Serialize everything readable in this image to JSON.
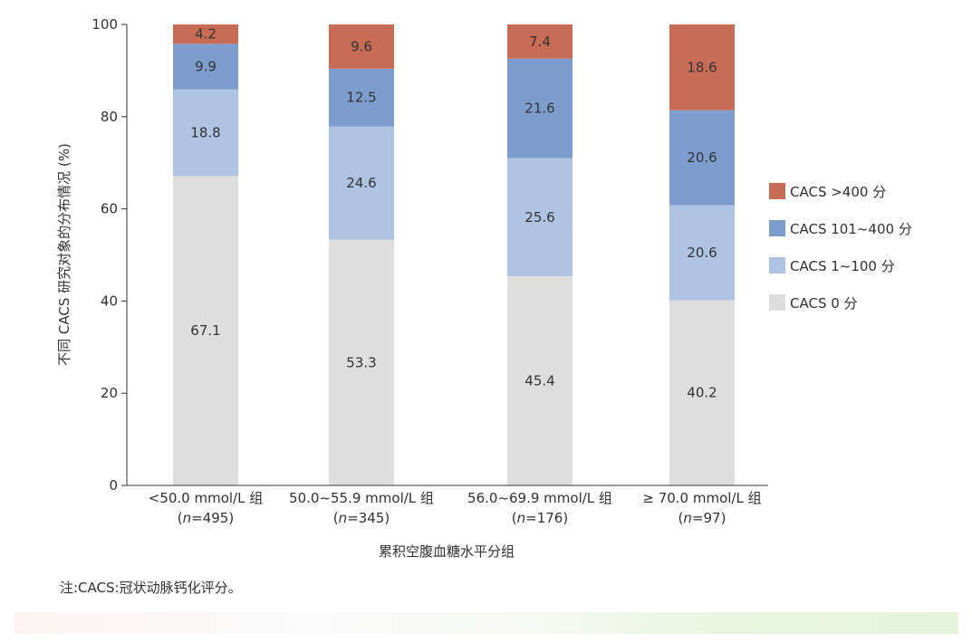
{
  "chart_data": {
    "type": "bar",
    "stacked": true,
    "categories": [
      {
        "label": "<50.0 mmol/L 组",
        "n_label": "n",
        "n_value": "=495"
      },
      {
        "label": "50.0~55.9 mmol/L 组",
        "n_label": "n",
        "n_value": "=345"
      },
      {
        "label": "56.0~69.9 mmol/L 组",
        "n_label": "n",
        "n_value": "=176"
      },
      {
        "label": "≥ 70.0 mmol/L 组",
        "n_label": "n",
        "n_value": "=97"
      }
    ],
    "series": [
      {
        "name": "CACS 0 分",
        "color": "#dedede",
        "values": [
          67.1,
          53.3,
          45.4,
          40.2
        ]
      },
      {
        "name": "CACS 1~100 分",
        "color": "#afc3e3",
        "values": [
          18.8,
          24.6,
          25.6,
          20.6
        ]
      },
      {
        "name": "CACS 101~400 分",
        "color": "#7e9dcf",
        "values": [
          9.9,
          12.5,
          21.6,
          20.6
        ]
      },
      {
        "name": "CACS >400 分",
        "color": "#c96c55",
        "values": [
          4.2,
          9.6,
          7.4,
          18.6
        ]
      }
    ],
    "ylim": [
      0,
      100
    ],
    "yticks": [
      0,
      20,
      40,
      60,
      80,
      100
    ],
    "ylabel": "不同 CACS 研究对象的分布情况 (%)",
    "xlabel": "累积空腹血糖水平分组",
    "legend_position": "right",
    "legend_order": [
      "CACS >400 分",
      "CACS 101~400 分",
      "CACS 1~100 分",
      "CACS 0 分"
    ],
    "grid": false
  },
  "note": "注:CACS:冠状动脉钙化评分。"
}
